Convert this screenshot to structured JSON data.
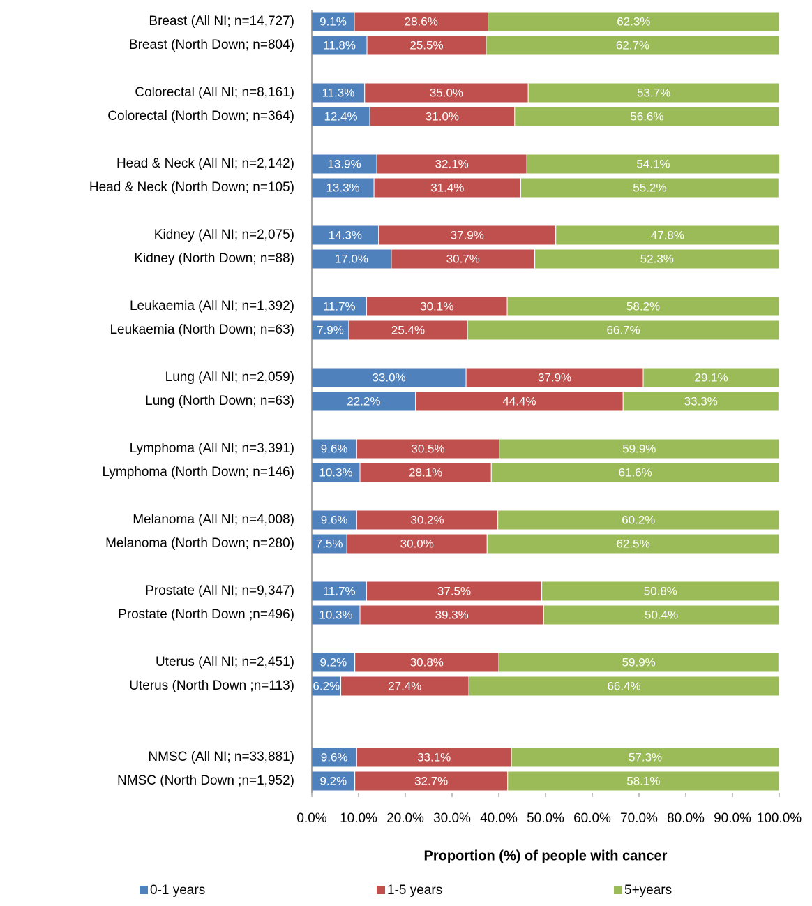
{
  "chart_data": {
    "type": "stacked-bar-horizontal",
    "categories": [
      "Breast (All NI; n=14,727)",
      "Breast (North Down; n=804)",
      null,
      "Colorectal (All NI; n=8,161)",
      "Colorectal (North Down; n=364)",
      null,
      "Head & Neck (All NI; n=2,142)",
      "Head & Neck (North Down; n=105)",
      null,
      "Kidney (All NI; n=2,075)",
      "Kidney (North Down; n=88)",
      null,
      "Leukaemia (All NI; n=1,392)",
      "Leukaemia (North Down; n=63)",
      null,
      "Lung (All NI; n=2,059)",
      "Lung (North Down; n=63)",
      null,
      "Lymphoma (All NI; n=3,391)",
      "Lymphoma (North Down; n=146)",
      null,
      "Melanoma (All NI; n=4,008)",
      "Melanoma (North Down; n=280)",
      null,
      "Prostate (All NI; n=9,347)",
      "Prostate (North Down ;n=496)",
      null,
      "Uterus  (All NI; n=2,451)",
      "Uterus  (North Down ;n=113)",
      null,
      null,
      "NMSC (All NI; n=33,881)",
      "NMSC (North Down ;n=1,952)"
    ],
    "series": [
      {
        "name": "0-1 years",
        "color": "#4f81bd",
        "values": [
          9.1,
          11.8,
          null,
          11.3,
          12.4,
          null,
          13.9,
          13.3,
          null,
          14.3,
          17.0,
          null,
          11.7,
          7.9,
          null,
          33.0,
          22.2,
          null,
          9.6,
          10.3,
          null,
          9.6,
          7.5,
          null,
          11.7,
          10.3,
          null,
          9.2,
          6.2,
          null,
          null,
          9.6,
          9.2
        ],
        "value_labels": [
          "9.1%",
          "11.8%",
          null,
          "11.3%",
          "12.4%",
          null,
          "13.9%",
          "13.3%",
          null,
          "14.3%",
          "17.0%",
          null,
          "11.7%",
          "7.9%",
          null,
          "33.0%",
          "22.2%",
          null,
          "9.6%",
          "10.3%",
          null,
          "9.6%",
          "7.5%",
          null,
          "11.7%",
          "10.3%",
          null,
          "9.2%",
          "6.2%",
          null,
          null,
          "9.6%",
          "9.2%"
        ]
      },
      {
        "name": "1-5 years",
        "color": "#c0504d",
        "values": [
          28.6,
          25.5,
          null,
          35.0,
          31.0,
          null,
          32.1,
          31.4,
          null,
          37.9,
          30.7,
          null,
          30.1,
          25.4,
          null,
          37.9,
          44.4,
          null,
          30.5,
          28.1,
          null,
          30.2,
          30.0,
          null,
          37.5,
          39.3,
          null,
          30.8,
          27.4,
          null,
          null,
          33.1,
          32.7
        ],
        "value_labels": [
          "28.6%",
          "25.5%",
          null,
          "35.0%",
          "31.0%",
          null,
          "32.1%",
          "31.4%",
          null,
          "37.9%",
          "30.7%",
          null,
          "30.1%",
          "25.4%",
          null,
          "37.9%",
          "44.4%",
          null,
          "30.5%",
          "28.1%",
          null,
          "30.2%",
          "30.0%",
          null,
          "37.5%",
          "39.3%",
          null,
          "30.8%",
          "27.4%",
          null,
          null,
          "33.1%",
          "32.7%"
        ]
      },
      {
        "name": "5+years",
        "color": "#9bbb59",
        "values": [
          62.3,
          62.7,
          null,
          53.7,
          56.6,
          null,
          54.1,
          55.2,
          null,
          47.8,
          52.3,
          null,
          58.2,
          66.7,
          null,
          29.1,
          33.3,
          null,
          59.9,
          61.6,
          null,
          60.2,
          62.5,
          null,
          50.8,
          50.4,
          null,
          59.9,
          66.4,
          null,
          null,
          57.3,
          58.1
        ],
        "value_labels": [
          "62.3%",
          "62.7%",
          null,
          "53.7%",
          "56.6%",
          null,
          "54.1%",
          "55.2%",
          null,
          "47.8%",
          "52.3%",
          null,
          "58.2%",
          "66.7%",
          null,
          "29.1%",
          "33.3%",
          null,
          "59.9%",
          "61.6%",
          null,
          "60.2%",
          "62.5%",
          null,
          "50.8%",
          "50.4%",
          null,
          "59.9%",
          "66.4%",
          null,
          null,
          "57.3%",
          "58.1%"
        ]
      }
    ],
    "xlabel": "Proportion (%) of people with cancer",
    "xlim": [
      0,
      100
    ],
    "xticks": [
      {
        "value": 0,
        "label": "0.0%"
      },
      {
        "value": 10,
        "label": "10.0%"
      },
      {
        "value": 20,
        "label": "20.0%"
      },
      {
        "value": 30,
        "label": "30.0%"
      },
      {
        "value": 40,
        "label": "40.0%"
      },
      {
        "value": 50,
        "label": "50.0%"
      },
      {
        "value": 60,
        "label": "60.0%"
      },
      {
        "value": 70,
        "label": "70.0%"
      },
      {
        "value": 80,
        "label": "80.0%"
      },
      {
        "value": 90,
        "label": "90.0%"
      },
      {
        "value": 100,
        "label": "100.0%"
      }
    ],
    "legend": "bottom"
  }
}
